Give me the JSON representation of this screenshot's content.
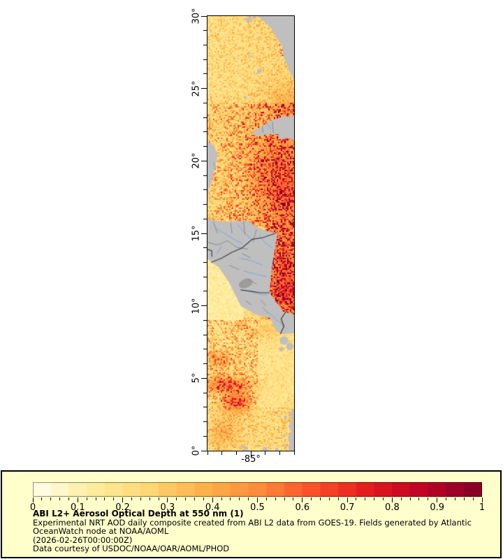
{
  "chart_data": {
    "type": "heatmap",
    "title": "ABI L2+ Aerosol Optical Depth at 550 nm (1)",
    "subtitle_lines": [
      "Experimental NRT AOD daily composite created from ABI L2 data from GOES-19. Fields generated by Atlantic",
      "OceanWatch node at NOAA/AOML"
    ],
    "timestamp": "(2026-02-26T00:00:00Z)",
    "credit": "Data courtesy of USDOC/NOAA/OAR/AOML/PHOD",
    "variable": "Aerosol Optical Depth at 550 nm",
    "satellite": "GOES-19",
    "x_axis": {
      "range": [
        -88,
        -82
      ],
      "major_ticks": [
        -85
      ],
      "major_labels": [
        "-85°"
      ],
      "minor_step": 1
    },
    "y_axis": {
      "range": [
        0,
        30
      ],
      "major_ticks": [
        0,
        5,
        10,
        15,
        20,
        25,
        30
      ],
      "major_labels": [
        "0°",
        "5°",
        "10°",
        "15°",
        "20°",
        "25°",
        "30°"
      ],
      "minor_step": 1
    },
    "colorbar": {
      "min": 0,
      "max": 1,
      "segments": 25,
      "minor_step": 0.02,
      "major_tick_values": [
        0,
        0.1,
        0.2,
        0.3,
        0.4,
        0.5,
        0.6,
        0.7,
        0.8,
        0.9,
        1
      ],
      "major_tick_labels": [
        "0",
        "0.1",
        "0.2",
        "0.3",
        "0.4",
        "0.5",
        "0.6",
        "0.7",
        "0.8",
        "0.9",
        "1"
      ],
      "colormap_name": "YlOrRd",
      "stops": [
        "#ffffee",
        "#ffeda0",
        "#fed976",
        "#feb24c",
        "#fd8d3c",
        "#fc4e2a",
        "#e31a1c",
        "#bd0026",
        "#800026"
      ]
    },
    "colors": {
      "land_nodata_gray": "#bfbfbf",
      "lake_gray": "#9c9c9c",
      "admin_border": "#8c8c8c",
      "country_border": "#3c3c3c",
      "river_blue": "#7aa7d8",
      "frame": "#000000",
      "legend_bg": "#ffffcc",
      "page_bg": "#ffffff",
      "coast_speck_red": "#cc3322"
    },
    "field_model": {
      "cell_deg": 0.1,
      "blobs": [
        [
          -83.0,
          20.0,
          2.0,
          2.5,
          0.16
        ],
        [
          -82.5,
          17.5,
          1.8,
          2.0,
          0.18
        ],
        [
          -82.6,
          13.0,
          1.3,
          2.4,
          0.22
        ],
        [
          -82.4,
          10.6,
          1.2,
          1.4,
          0.2
        ],
        [
          -86.8,
          4.6,
          1.8,
          0.55,
          0.3
        ],
        [
          -86.0,
          3.4,
          1.0,
          0.8,
          0.35
        ],
        [
          -87.2,
          6.3,
          1.3,
          0.6,
          0.18
        ],
        [
          -82.6,
          24.3,
          1.3,
          1.2,
          0.1
        ],
        [
          -84.0,
          8.3,
          1.6,
          0.7,
          0.1
        ],
        [
          -86.9,
          1.2,
          1.0,
          0.9,
          0.15
        ]
      ]
    },
    "geo": {
      "land_polygons": {
        "florida": [
          [
            -84.5,
            30
          ],
          [
            -84.05,
            29.6
          ],
          [
            -83.55,
            29.1
          ],
          [
            -83.25,
            28.55
          ],
          [
            -82.85,
            27.95
          ],
          [
            -82.75,
            27.25
          ],
          [
            -82.5,
            26.65
          ],
          [
            -82.25,
            26.05
          ],
          [
            -82.0,
            25.55
          ],
          [
            -82.0,
            30
          ]
        ],
        "cuba": [
          [
            -82.0,
            23.12
          ],
          [
            -82.8,
            23.05
          ],
          [
            -83.7,
            22.75
          ],
          [
            -84.4,
            22.3
          ],
          [
            -84.95,
            21.87
          ],
          [
            -84.45,
            21.7
          ],
          [
            -83.8,
            21.85
          ],
          [
            -83.05,
            21.85
          ],
          [
            -82.55,
            21.6
          ],
          [
            -82.0,
            21.45
          ]
        ],
        "isla_juventud": [
          [
            -82.65,
            21.75
          ],
          [
            -83.1,
            21.8
          ],
          [
            -83.05,
            21.5
          ],
          [
            -82.6,
            21.52
          ]
        ],
        "yucatan_belize": [
          [
            -88.0,
            21.35
          ],
          [
            -87.55,
            21.05
          ],
          [
            -87.3,
            20.4
          ],
          [
            -87.45,
            19.6
          ],
          [
            -87.65,
            18.8
          ],
          [
            -87.9,
            18.1
          ],
          [
            -88.0,
            17.1
          ]
        ],
        "central_america": [
          [
            -88.0,
            16.0
          ],
          [
            -86.9,
            15.8
          ],
          [
            -85.3,
            15.9
          ],
          [
            -84.2,
            15.25
          ],
          [
            -83.15,
            15.0
          ],
          [
            -83.35,
            13.8
          ],
          [
            -83.55,
            12.6
          ],
          [
            -83.7,
            10.9
          ],
          [
            -82.75,
            9.6
          ],
          [
            -82.0,
            9.4
          ],
          [
            -82.0,
            8.1
          ],
          [
            -82.95,
            8.05
          ],
          [
            -83.35,
            8.45
          ],
          [
            -83.65,
            9.15
          ],
          [
            -84.7,
            9.4
          ],
          [
            -85.7,
            10.0
          ],
          [
            -86.5,
            11.6
          ],
          [
            -87.2,
            12.65
          ],
          [
            -87.75,
            13.05
          ],
          [
            -88.0,
            13.25
          ]
        ]
      },
      "nodata_polygons": {
        "sa_coast_strip": [
          [
            -82.0,
            2.9
          ],
          [
            -82.3,
            2.6
          ],
          [
            -82.15,
            2.1
          ],
          [
            -82.4,
            1.7
          ],
          [
            -82.2,
            1.3
          ],
          [
            -82.45,
            0.9
          ],
          [
            -82.3,
            0.5
          ],
          [
            -82.4,
            0.05
          ],
          [
            -82.0,
            0.0
          ]
        ]
      },
      "nodata_blobs": [
        [
          -82.6,
          2.3,
          0.12
        ],
        [
          -82.7,
          1.0,
          0.1
        ],
        [
          -82.55,
          0.3,
          0.1
        ],
        [
          -84.0,
          0.1,
          0.18
        ],
        [
          -85.35,
          0.15,
          0.15
        ],
        [
          -85.6,
          0.35,
          0.1
        ],
        [
          -83.2,
          0.08,
          0.12
        ],
        [
          -85.15,
          29.75,
          0.2
        ],
        [
          -84.75,
          29.9,
          0.13
        ],
        [
          -85.2,
          27.4,
          0.09
        ],
        [
          -84.4,
          26.2,
          0.16
        ],
        [
          -84.9,
          27.2,
          0.07
        ],
        [
          -85.35,
          24.35,
          0.1
        ],
        [
          -84.35,
          28.45,
          0.07
        ],
        [
          -82.7,
          7.6,
          0.3
        ],
        [
          -82.3,
          7.2,
          0.25
        ],
        [
          -82.9,
          7.0,
          0.15
        ]
      ],
      "lake_nicaragua": [
        -85.35,
        11.55,
        0.5,
        0.3
      ],
      "rivers": [
        [
          [
            -87.5,
            15.4
          ],
          [
            -86.8,
            15.0
          ],
          [
            -86.2,
            14.6
          ],
          [
            -85.6,
            14.3
          ]
        ],
        [
          [
            -85.9,
            15.6
          ],
          [
            -85.3,
            14.9
          ],
          [
            -84.8,
            14.5
          ]
        ],
        [
          [
            -84.4,
            14.9
          ],
          [
            -84.0,
            14.35
          ],
          [
            -83.5,
            14.0
          ]
        ],
        [
          [
            -85.8,
            13.3
          ],
          [
            -84.9,
            13.1
          ],
          [
            -84.2,
            12.8
          ]
        ],
        [
          [
            -85.5,
            12.4
          ],
          [
            -84.7,
            12.2
          ],
          [
            -83.9,
            12.0
          ]
        ],
        [
          [
            -85.1,
            11.0
          ],
          [
            -84.4,
            10.8
          ],
          [
            -83.85,
            10.75
          ]
        ],
        [
          [
            -87.0,
            14.15
          ],
          [
            -87.35,
            13.6
          ]
        ],
        [
          [
            -83.9,
            9.6
          ],
          [
            -83.4,
            9.25
          ],
          [
            -83.1,
            8.9
          ]
        ],
        [
          [
            -83.9,
            22.6
          ],
          [
            -83.6,
            22.2
          ]
        ],
        [
          [
            -87.6,
            19.9
          ],
          [
            -87.45,
            19.5
          ]
        ]
      ],
      "admin_lines": [
        [
          [
            -88.0,
            14.4
          ],
          [
            -87.3,
            14.2
          ],
          [
            -86.6,
            14.5
          ],
          [
            -86.0,
            14.05
          ],
          [
            -85.2,
            13.9
          ]
        ],
        [
          [
            -87.6,
            15.8
          ],
          [
            -87.3,
            15.0
          ]
        ],
        [
          [
            -86.4,
            15.75
          ],
          [
            -86.3,
            15.0
          ]
        ],
        [
          [
            -85.5,
            15.85
          ],
          [
            -85.4,
            14.9
          ]
        ],
        [
          [
            -84.6,
            15.3
          ],
          [
            -84.85,
            14.4
          ]
        ],
        [
          [
            -85.6,
            13.6
          ],
          [
            -85.0,
            13.3
          ]
        ],
        [
          [
            -86.5,
            12.8
          ],
          [
            -85.8,
            12.5
          ]
        ],
        [
          [
            -85.2,
            11.8
          ],
          [
            -84.6,
            11.5
          ]
        ],
        [
          [
            -84.3,
            10.4
          ],
          [
            -83.95,
            10.0
          ]
        ],
        [
          [
            -85.35,
            10.35
          ],
          [
            -84.95,
            10.05
          ]
        ],
        [
          [
            -84.2,
            9.9
          ],
          [
            -83.8,
            9.5
          ]
        ],
        [
          [
            -83.0,
            8.95
          ],
          [
            -82.7,
            8.5
          ]
        ],
        [
          [
            -84.2,
            22.4
          ],
          [
            -84.15,
            21.95
          ]
        ],
        [
          [
            -83.5,
            22.7
          ],
          [
            -83.45,
            21.95
          ]
        ]
      ],
      "country_borders": [
        [
          [
            -87.75,
            13.0
          ],
          [
            -87.0,
            13.3
          ],
          [
            -86.3,
            13.7
          ],
          [
            -85.6,
            14.0
          ],
          [
            -84.9,
            14.6
          ],
          [
            -84.2,
            14.7
          ],
          [
            -83.3,
            15.0
          ]
        ],
        [
          [
            -85.7,
            11.1
          ],
          [
            -85.0,
            11.0
          ],
          [
            -84.3,
            10.9
          ],
          [
            -83.7,
            10.9
          ]
        ],
        [
          [
            -82.6,
            9.55
          ],
          [
            -82.9,
            9.1
          ],
          [
            -82.7,
            8.6
          ],
          [
            -82.95,
            8.05
          ]
        ],
        [
          [
            -88.0,
            13.9
          ],
          [
            -87.7,
            13.8
          ],
          [
            -87.7,
            13.4
          ]
        ]
      ],
      "coast_red_specks": [
        [
          -82.85,
          27.65
        ],
        [
          -82.9,
          27.45
        ],
        [
          -82.8,
          27.3
        ],
        [
          -83.0,
          28.0
        ]
      ]
    }
  },
  "legend": {
    "title": "ABI L2+ Aerosol Optical Depth at 550 nm (1)",
    "line2": "Experimental NRT AOD daily composite created from ABI L2 data from GOES-19. Fields generated by Atlantic",
    "line3": "OceanWatch node at NOAA/AOML",
    "line4": "(2026-02-26T00:00:00Z)",
    "line5": "Data courtesy of USDOC/NOAA/OAR/AOML/PHOD"
  }
}
